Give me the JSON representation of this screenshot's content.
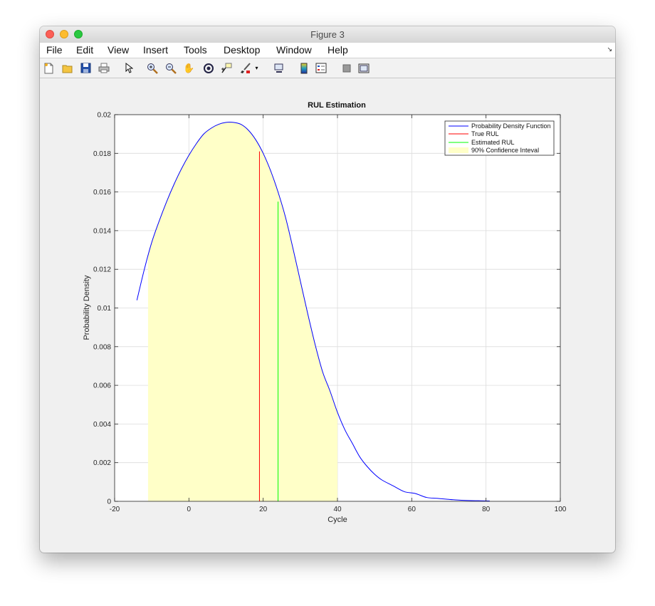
{
  "window": {
    "title": "Figure 3"
  },
  "menubar": {
    "items": [
      {
        "label": "File"
      },
      {
        "label": "Edit"
      },
      {
        "label": "View"
      },
      {
        "label": "Insert"
      },
      {
        "label": "Tools"
      },
      {
        "label": "Desktop"
      },
      {
        "label": "Window"
      },
      {
        "label": "Help"
      }
    ]
  },
  "toolbar": {
    "buttons": [
      {
        "icon": "new-figure-icon"
      },
      {
        "icon": "open-file-icon"
      },
      {
        "icon": "save-icon"
      },
      {
        "icon": "print-icon"
      },
      {
        "icon": "select-arrow-icon"
      },
      {
        "icon": "zoom-in-icon"
      },
      {
        "icon": "zoom-out-icon"
      },
      {
        "icon": "pan-hand-icon"
      },
      {
        "icon": "rotate-3d-icon"
      },
      {
        "icon": "data-cursor-icon"
      },
      {
        "icon": "brush-icon"
      },
      {
        "icon": "link-plot-icon"
      },
      {
        "icon": "colorbar-icon"
      },
      {
        "icon": "legend-icon"
      },
      {
        "icon": "hide-plot-tools-icon"
      },
      {
        "icon": "show-plot-tools-icon"
      }
    ]
  },
  "chart_data": {
    "type": "line",
    "title": "RUL Estimation",
    "xlabel": "Cycle",
    "ylabel": "Probability Density",
    "xlim": [
      -20,
      100
    ],
    "ylim": [
      0,
      0.02
    ],
    "xticks": [
      "-20",
      "0",
      "20",
      "40",
      "60",
      "80",
      "100"
    ],
    "yticks": [
      "0",
      "0.002",
      "0.004",
      "0.006",
      "0.008",
      "0.01",
      "0.012",
      "0.014",
      "0.016",
      "0.018",
      "0.02"
    ],
    "grid": true,
    "legend_position": "top-right",
    "series": [
      {
        "name": "Probability Density Function",
        "color": "#0000ff",
        "x": [
          -14,
          -12,
          -10,
          -8,
          -6,
          -4,
          -2,
          0,
          2,
          4,
          6,
          8,
          10,
          12,
          14,
          16,
          18,
          20,
          22,
          24,
          26,
          28,
          30,
          32,
          34,
          36,
          38,
          40,
          42,
          44,
          46,
          48,
          50,
          52,
          55,
          58,
          61,
          64,
          67,
          70,
          74,
          78,
          81
        ],
        "y": [
          0.0104,
          0.012,
          0.0134,
          0.0145,
          0.0155,
          0.0164,
          0.0172,
          0.0179,
          0.0185,
          0.019,
          0.0193,
          0.0195,
          0.0196,
          0.0196,
          0.0195,
          0.0192,
          0.0187,
          0.018,
          0.0171,
          0.016,
          0.0147,
          0.0131,
          0.0114,
          0.0097,
          0.0081,
          0.0067,
          0.0057,
          0.0046,
          0.0037,
          0.003,
          0.0023,
          0.0018,
          0.0014,
          0.0011,
          0.0008,
          0.0005,
          0.0004,
          0.0002,
          0.00015,
          0.0001,
          5e-05,
          3e-05,
          2e-05
        ]
      },
      {
        "name": "True RUL",
        "color": "#ff0000",
        "x": 19,
        "y_top": 0.0181
      },
      {
        "name": "Estimated RUL",
        "color": "#00ff00",
        "x": 24,
        "y_top": 0.0155
      },
      {
        "name": "90% Confidence Inteval",
        "color": "#ffffc8",
        "x_range": [
          -11,
          40
        ]
      }
    ]
  }
}
